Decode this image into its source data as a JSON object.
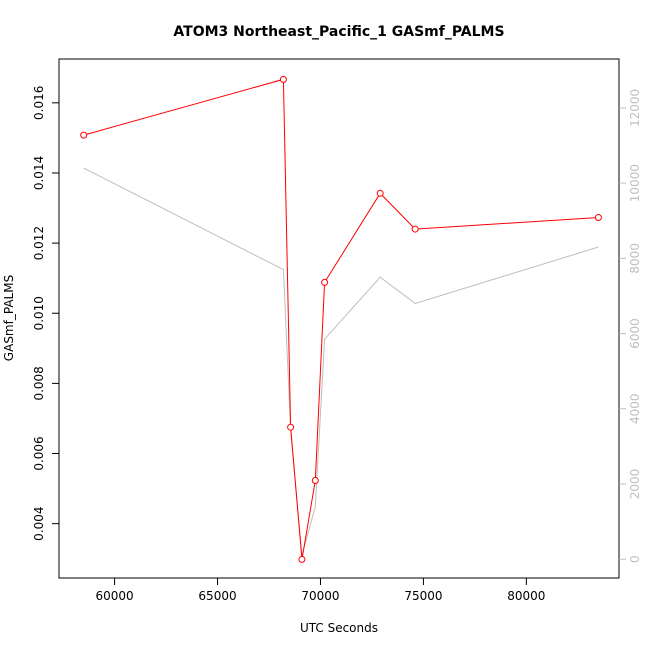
{
  "chart_data": {
    "type": "line",
    "title": "ATOM3 Northeast_Pacific_1 GASmf_PALMS",
    "xlabel": "UTC Seconds",
    "ylabel": "GASmf_PALMS",
    "xlim": [
      57300,
      84500
    ],
    "ylim": [
      0.00245,
      0.01725
    ],
    "y2lim": [
      -500,
      13300
    ],
    "x_ticks": [
      60000,
      65000,
      70000,
      75000,
      80000
    ],
    "y_ticks": [
      0.004,
      0.006,
      0.008,
      0.01,
      0.012,
      0.014,
      0.016
    ],
    "y_tick_labels": [
      "0.004",
      "0.006",
      "0.008",
      "0.010",
      "0.012",
      "0.014",
      "0.016"
    ],
    "y2_ticks": [
      0,
      2000,
      4000,
      6000,
      8000,
      10000,
      12000
    ],
    "grid": false,
    "colors": {
      "primary": "#ff0000",
      "secondary": "#bebebe",
      "axis": "#000000"
    },
    "series": [
      {
        "axis": "left",
        "color": "#ff0000",
        "markers": true,
        "points": [
          {
            "x": 58500,
            "y": 0.01508
          },
          {
            "x": 68200,
            "y": 0.01667
          },
          {
            "x": 68550,
            "y": 0.00675
          },
          {
            "x": 69100,
            "y": 0.00298
          },
          {
            "x": 69750,
            "y": 0.00523
          },
          {
            "x": 70200,
            "y": 0.01088
          },
          {
            "x": 72900,
            "y": 0.01342
          },
          {
            "x": 74600,
            "y": 0.0124
          },
          {
            "x": 83500,
            "y": 0.01273
          }
        ]
      },
      {
        "axis": "right",
        "color": "#bebebe",
        "markers": false,
        "points": [
          {
            "x": 58500,
            "y": 10400
          },
          {
            "x": 68200,
            "y": 7700
          },
          {
            "x": 68550,
            "y": 3450
          },
          {
            "x": 69100,
            "y": 100
          },
          {
            "x": 69750,
            "y": 1400
          },
          {
            "x": 70200,
            "y": 5850
          },
          {
            "x": 72900,
            "y": 7500
          },
          {
            "x": 74600,
            "y": 6800
          },
          {
            "x": 83500,
            "y": 8300
          }
        ]
      }
    ]
  }
}
